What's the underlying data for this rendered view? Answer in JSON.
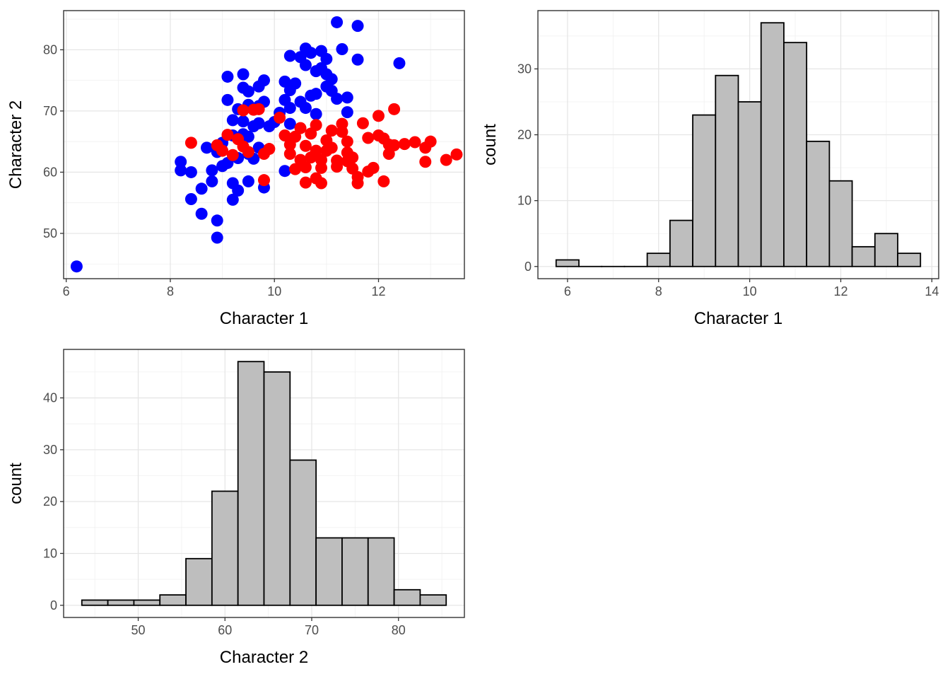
{
  "chart_data": [
    {
      "id": "scatter",
      "type": "scatter",
      "title": "",
      "xlabel": "Character 1",
      "ylabel": "Character 2",
      "xlim": [
        5.95,
        13.65
      ],
      "ylim": [
        42.6,
        86.4
      ],
      "xticks": [
        6,
        8,
        10,
        12
      ],
      "yticks": [
        50,
        60,
        70,
        80
      ],
      "grid": true,
      "legend": "none",
      "series": [
        {
          "name": "blue group",
          "color": "#0000FF",
          "points": [
            [
              6.2,
              44.6
            ],
            [
              8.9,
              49.3
            ],
            [
              8.9,
              52.1
            ],
            [
              8.6,
              53.2
            ],
            [
              8.4,
              55.6
            ],
            [
              8.6,
              57.3
            ],
            [
              8.8,
              58.5
            ],
            [
              8.4,
              60.0
            ],
            [
              8.2,
              60.3
            ],
            [
              8.2,
              61.7
            ],
            [
              8.8,
              60.3
            ],
            [
              9.2,
              55.5
            ],
            [
              9.3,
              57.0
            ],
            [
              9.2,
              58.2
            ],
            [
              9.5,
              58.5
            ],
            [
              9.8,
              57.5
            ],
            [
              10.2,
              60.2
            ],
            [
              9.0,
              61.0
            ],
            [
              9.1,
              61.5
            ],
            [
              9.3,
              62.3
            ],
            [
              9.5,
              63.0
            ],
            [
              9.6,
              62.2
            ],
            [
              9.7,
              64.0
            ],
            [
              8.7,
              64.0
            ],
            [
              8.9,
              63.3
            ],
            [
              9.0,
              64.8
            ],
            [
              9.2,
              66.0
            ],
            [
              9.4,
              66.2
            ],
            [
              9.5,
              65.8
            ],
            [
              9.6,
              67.5
            ],
            [
              9.2,
              68.5
            ],
            [
              9.4,
              68.3
            ],
            [
              9.7,
              68.0
            ],
            [
              9.9,
              67.5
            ],
            [
              9.3,
              70.3
            ],
            [
              9.5,
              71.0
            ],
            [
              9.7,
              70.8
            ],
            [
              9.1,
              71.8
            ],
            [
              9.8,
              71.5
            ],
            [
              9.4,
              73.8
            ],
            [
              9.5,
              73.2
            ],
            [
              9.7,
              74.0
            ],
            [
              9.8,
              75.0
            ],
            [
              9.1,
              75.6
            ],
            [
              9.4,
              76.0
            ],
            [
              10.2,
              74.8
            ],
            [
              10.3,
              73.4
            ],
            [
              10.4,
              74.5
            ],
            [
              10.2,
              71.8
            ],
            [
              10.3,
              70.5
            ],
            [
              10.1,
              69.7
            ],
            [
              10.0,
              68.2
            ],
            [
              10.3,
              67.9
            ],
            [
              10.5,
              71.5
            ],
            [
              10.3,
              79.0
            ],
            [
              10.5,
              78.8
            ],
            [
              10.6,
              77.5
            ],
            [
              10.6,
              80.2
            ],
            [
              10.7,
              79.5
            ],
            [
              10.8,
              76.5
            ],
            [
              10.9,
              77.0
            ],
            [
              11.0,
              78.5
            ],
            [
              10.9,
              79.8
            ],
            [
              11.0,
              76.0
            ],
            [
              11.1,
              75.2
            ],
            [
              11.0,
              74.0
            ],
            [
              11.1,
              73.3
            ],
            [
              10.8,
              72.8
            ],
            [
              10.7,
              72.5
            ],
            [
              11.2,
              72.0
            ],
            [
              10.6,
              70.5
            ],
            [
              10.8,
              69.5
            ],
            [
              11.4,
              72.2
            ],
            [
              11.4,
              69.8
            ],
            [
              11.2,
              84.5
            ],
            [
              11.6,
              83.9
            ],
            [
              11.3,
              80.1
            ],
            [
              11.6,
              78.4
            ],
            [
              12.4,
              77.8
            ]
          ]
        },
        {
          "name": "red group",
          "color": "#FF0000",
          "points": [
            [
              8.4,
              64.8
            ],
            [
              8.9,
              64.4
            ],
            [
              9.0,
              63.5
            ],
            [
              9.2,
              62.8
            ],
            [
              9.1,
              66.1
            ],
            [
              9.3,
              65.4
            ],
            [
              9.4,
              64.2
            ],
            [
              9.5,
              63.3
            ],
            [
              9.4,
              70.1
            ],
            [
              9.7,
              70.3
            ],
            [
              9.6,
              70.2
            ],
            [
              9.8,
              63.0
            ],
            [
              9.9,
              63.8
            ],
            [
              9.8,
              58.7
            ],
            [
              10.1,
              68.9
            ],
            [
              10.2,
              66.0
            ],
            [
              10.3,
              64.5
            ],
            [
              10.3,
              63.0
            ],
            [
              10.4,
              65.8
            ],
            [
              10.5,
              67.2
            ],
            [
              10.5,
              62.0
            ],
            [
              10.4,
              60.5
            ],
            [
              10.6,
              58.3
            ],
            [
              10.6,
              60.8
            ],
            [
              10.7,
              62.4
            ],
            [
              10.6,
              64.3
            ],
            [
              10.7,
              66.3
            ],
            [
              10.8,
              67.7
            ],
            [
              10.8,
              63.5
            ],
            [
              10.8,
              59.0
            ],
            [
              10.9,
              58.2
            ],
            [
              10.9,
              60.7
            ],
            [
              10.9,
              62.0
            ],
            [
              11.0,
              63.5
            ],
            [
              11.0,
              65.2
            ],
            [
              11.1,
              66.8
            ],
            [
              11.1,
              64.0
            ],
            [
              11.2,
              61.9
            ],
            [
              11.2,
              60.9
            ],
            [
              11.3,
              67.9
            ],
            [
              11.3,
              66.6
            ],
            [
              11.4,
              65.0
            ],
            [
              11.4,
              63.2
            ],
            [
              11.4,
              61.8
            ],
            [
              11.5,
              60.6
            ],
            [
              11.6,
              59.2
            ],
            [
              11.6,
              58.2
            ],
            [
              11.5,
              62.4
            ],
            [
              11.7,
              68.0
            ],
            [
              11.8,
              65.6
            ],
            [
              11.8,
              60.1
            ],
            [
              11.9,
              60.7
            ],
            [
              12.0,
              66.0
            ],
            [
              12.0,
              69.2
            ],
            [
              12.1,
              58.5
            ],
            [
              12.1,
              65.5
            ],
            [
              12.2,
              63.0
            ],
            [
              12.2,
              64.5
            ],
            [
              12.3,
              70.3
            ],
            [
              12.3,
              64.4
            ],
            [
              12.5,
              64.6
            ],
            [
              12.7,
              64.9
            ],
            [
              12.9,
              64.0
            ],
            [
              13.0,
              65.0
            ],
            [
              12.9,
              61.7
            ],
            [
              13.3,
              62.0
            ],
            [
              13.5,
              62.9
            ]
          ]
        }
      ]
    },
    {
      "id": "hist_char1",
      "type": "bar",
      "title": "",
      "xlabel": "Character 1",
      "ylabel": "count",
      "xlim": [
        5.35,
        14.15
      ],
      "ylim": [
        -1.85,
        38.85
      ],
      "xticks": [
        6,
        8,
        10,
        12,
        14
      ],
      "yticks": [
        0,
        10,
        20,
        30
      ],
      "grid": true,
      "legend": "none",
      "bar_fill": "#BEBEBE",
      "bar_edge": "#000000",
      "bins": [
        [
          5.75,
          6.25,
          1
        ],
        [
          6.25,
          6.75,
          0
        ],
        [
          6.75,
          7.25,
          0
        ],
        [
          7.25,
          7.75,
          0
        ],
        [
          7.75,
          8.25,
          2
        ],
        [
          8.25,
          8.75,
          7
        ],
        [
          8.75,
          9.25,
          23
        ],
        [
          9.25,
          9.75,
          29
        ],
        [
          9.75,
          10.25,
          25
        ],
        [
          10.25,
          10.75,
          37
        ],
        [
          10.75,
          11.25,
          34
        ],
        [
          11.25,
          11.75,
          19
        ],
        [
          11.75,
          12.25,
          13
        ],
        [
          12.25,
          12.75,
          3
        ],
        [
          12.75,
          13.25,
          5
        ],
        [
          13.25,
          13.75,
          2
        ]
      ]
    },
    {
      "id": "hist_char2",
      "type": "bar",
      "title": "",
      "xlabel": "Character 2",
      "ylabel": "count",
      "xlim": [
        41.4,
        87.6
      ],
      "ylim": [
        -2.35,
        49.35
      ],
      "xticks": [
        50,
        60,
        70,
        80
      ],
      "yticks": [
        0,
        10,
        20,
        30,
        40
      ],
      "grid": true,
      "legend": "none",
      "bar_fill": "#BEBEBE",
      "bar_edge": "#000000",
      "bins": [
        [
          43.5,
          46.5,
          1
        ],
        [
          46.5,
          49.5,
          1
        ],
        [
          49.5,
          52.5,
          1
        ],
        [
          52.5,
          55.5,
          2
        ],
        [
          55.5,
          58.5,
          9
        ],
        [
          58.5,
          61.5,
          22
        ],
        [
          61.5,
          64.5,
          47
        ],
        [
          64.5,
          67.5,
          45
        ],
        [
          67.5,
          70.5,
          28
        ],
        [
          70.5,
          73.5,
          13
        ],
        [
          73.5,
          76.5,
          13
        ],
        [
          76.5,
          79.5,
          13
        ],
        [
          79.5,
          82.5,
          3
        ],
        [
          82.5,
          85.5,
          2
        ]
      ]
    }
  ]
}
